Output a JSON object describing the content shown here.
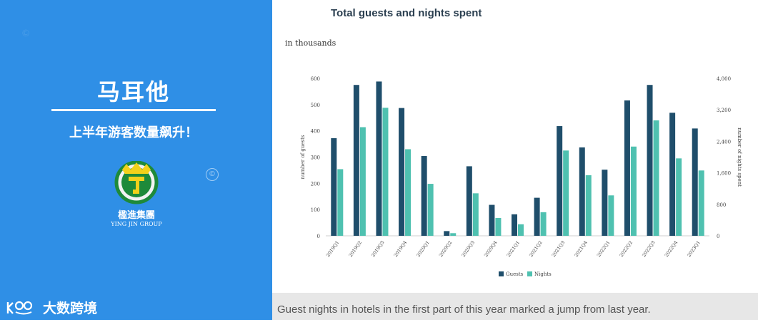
{
  "left_panel": {
    "title": "马耳他",
    "subtitle": "上半年游客数量飙升！",
    "logo_text_cn": "楹進集團",
    "logo_text_en": "YING JIN GROUP",
    "brand": "大数跨境",
    "copyright_symbol": "©",
    "background_color": "#2f8fe6"
  },
  "caption": "Guest nights in hotels in the first part of this year marked a jump from last year.",
  "chart_data": {
    "type": "bar",
    "title": "Total guests and nights spent",
    "subtitle": "in thousands",
    "ylabel": "number of guests",
    "y2label": "number of nights spent",
    "categories": [
      "2019Q1",
      "2019Q2",
      "2019Q3",
      "2019Q4",
      "2020Q1",
      "2020Q2",
      "2020Q3",
      "2020Q4",
      "2021Q1",
      "2021Q2",
      "2021Q3",
      "2021Q4",
      "2022Q1",
      "2022Q2",
      "2022Q3",
      "2022Q4",
      "2023Q1"
    ],
    "ylim": [
      0,
      600
    ],
    "y2lim": [
      0,
      4000
    ],
    "yticks": [
      0,
      100,
      200,
      300,
      400,
      500,
      600
    ],
    "y2ticks": [
      "0",
      "800",
      "1,600",
      "2,400",
      "3,200",
      "4,000"
    ],
    "series": [
      {
        "name": "Guests",
        "axis": "left",
        "color": "#1f4e6b",
        "values": [
          372,
          575,
          588,
          487,
          304,
          18,
          265,
          118,
          82,
          145,
          418,
          337,
          252,
          516,
          575,
          469,
          409
        ]
      },
      {
        "name": "Nights",
        "axis": "right",
        "color": "#4fc1b0",
        "values": [
          1693,
          2760,
          3253,
          2200,
          1320,
          67,
          1080,
          453,
          293,
          600,
          2167,
          1540,
          1027,
          2267,
          2933,
          1967,
          1660
        ]
      }
    ],
    "legend": "bottom-center",
    "grid": false
  }
}
